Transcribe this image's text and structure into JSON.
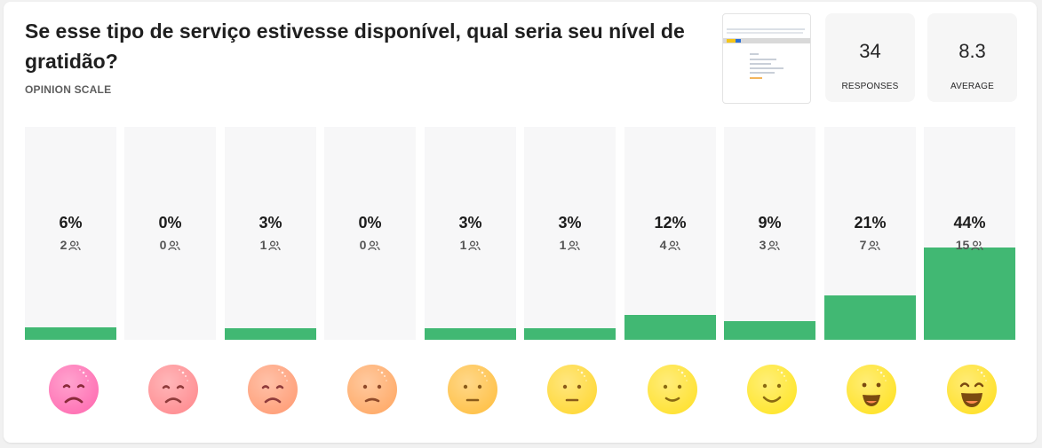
{
  "question": {
    "title": "Se esse tipo de serviço estivesse disponível, qual seria seu nível de gratidão?",
    "type_label": "OPINION SCALE"
  },
  "stats": {
    "responses": {
      "value": "34",
      "label": "RESPONSES"
    },
    "average": {
      "value": "8.3",
      "label": "AVERAGE"
    }
  },
  "scale": [
    {
      "percent": "6%",
      "count": "2",
      "fraction": 0.06,
      "face": "very-sad-face-icon",
      "color": "#ff71b4",
      "mood": "very-sad"
    },
    {
      "percent": "0%",
      "count": "0",
      "fraction": 0.0,
      "face": "sad-face-icon",
      "color": "#ff8f93",
      "mood": "sad"
    },
    {
      "percent": "3%",
      "count": "1",
      "fraction": 0.03,
      "face": "sad-face-icon",
      "color": "#ffa07a",
      "mood": "sad"
    },
    {
      "percent": "0%",
      "count": "0",
      "fraction": 0.0,
      "face": "slightly-sad-face-icon",
      "color": "#ffac6b",
      "mood": "slightly-sad"
    },
    {
      "percent": "3%",
      "count": "1",
      "fraction": 0.03,
      "face": "neutral-face-icon",
      "color": "#ffc24a",
      "mood": "neutral"
    },
    {
      "percent": "3%",
      "count": "1",
      "fraction": 0.03,
      "face": "neutral-face-icon",
      "color": "#ffd93a",
      "mood": "neutral"
    },
    {
      "percent": "12%",
      "count": "4",
      "fraction": 0.12,
      "face": "slight-smile-face-icon",
      "color": "#ffe233",
      "mood": "slight-smile"
    },
    {
      "percent": "9%",
      "count": "3",
      "fraction": 0.09,
      "face": "smile-face-icon",
      "color": "#ffe62e",
      "mood": "smile"
    },
    {
      "percent": "21%",
      "count": "7",
      "fraction": 0.21,
      "face": "happy-face-icon",
      "color": "#ffe32b",
      "mood": "happy"
    },
    {
      "percent": "44%",
      "count": "15",
      "fraction": 0.44,
      "face": "very-happy-face-icon",
      "color": "#ffe12c",
      "mood": "very-happy"
    }
  ],
  "bar_color": "#41b873",
  "icons": {
    "people": "people-icon"
  }
}
